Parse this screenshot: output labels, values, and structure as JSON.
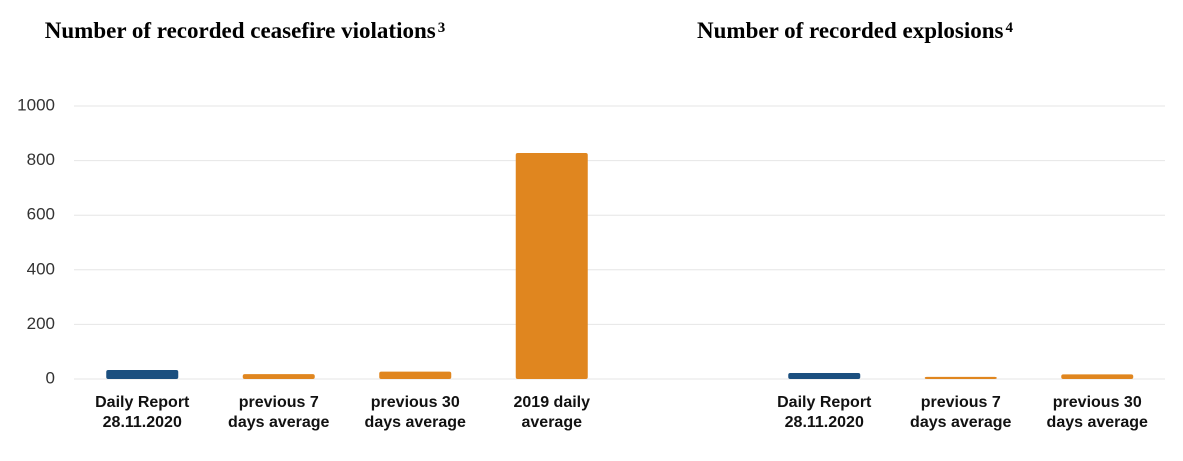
{
  "chart_data": [
    {
      "type": "bar",
      "title": "Number of recorded ceasefire violations",
      "title_note": "3",
      "categories": [
        "Daily Report 28.11.2020",
        "previous 7 days average",
        "previous 30 days average",
        "2019 daily average"
      ],
      "values": [
        33,
        18,
        27,
        828
      ],
      "colors": [
        "#1b4f7f",
        "#e0861f",
        "#e0861f",
        "#e0861f"
      ],
      "ylim": [
        0,
        1000
      ],
      "yticks": [
        0,
        200,
        400,
        600,
        800,
        1000
      ],
      "grid": true
    },
    {
      "type": "bar",
      "title": "Number of recorded explosions",
      "title_note": "4",
      "categories": [
        "Daily Report 28.11.2020",
        "previous 7 days average",
        "previous 30 days average"
      ],
      "values": [
        22,
        8,
        17
      ],
      "colors": [
        "#1b4f7f",
        "#e0861f",
        "#e0861f"
      ],
      "ylim": [
        0,
        1000
      ],
      "yticks": [
        0,
        200,
        400,
        600,
        800,
        1000
      ],
      "grid": true
    }
  ]
}
